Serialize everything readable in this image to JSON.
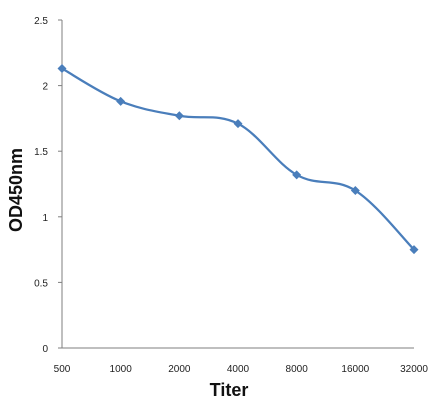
{
  "chart_data": {
    "type": "line",
    "title": "",
    "xlabel": "Titer",
    "ylabel": "OD450nm",
    "categories": [
      "500",
      "1000",
      "2000",
      "4000",
      "8000",
      "16000",
      "32000"
    ],
    "series": [
      {
        "values": [
          2.13,
          1.88,
          1.77,
          1.71,
          1.32,
          1.2,
          0.75
        ]
      }
    ],
    "ylim": [
      0,
      2.5
    ],
    "yticks": [
      0,
      0.5,
      1,
      1.5,
      2,
      2.5
    ],
    "ytick_labels": [
      "0",
      "0.5",
      "1",
      "1.5",
      "2",
      "2.5"
    ],
    "grid": false,
    "legend": "none",
    "line_color": "#4a7ebb",
    "marker": "diamond",
    "smooth": true
  }
}
